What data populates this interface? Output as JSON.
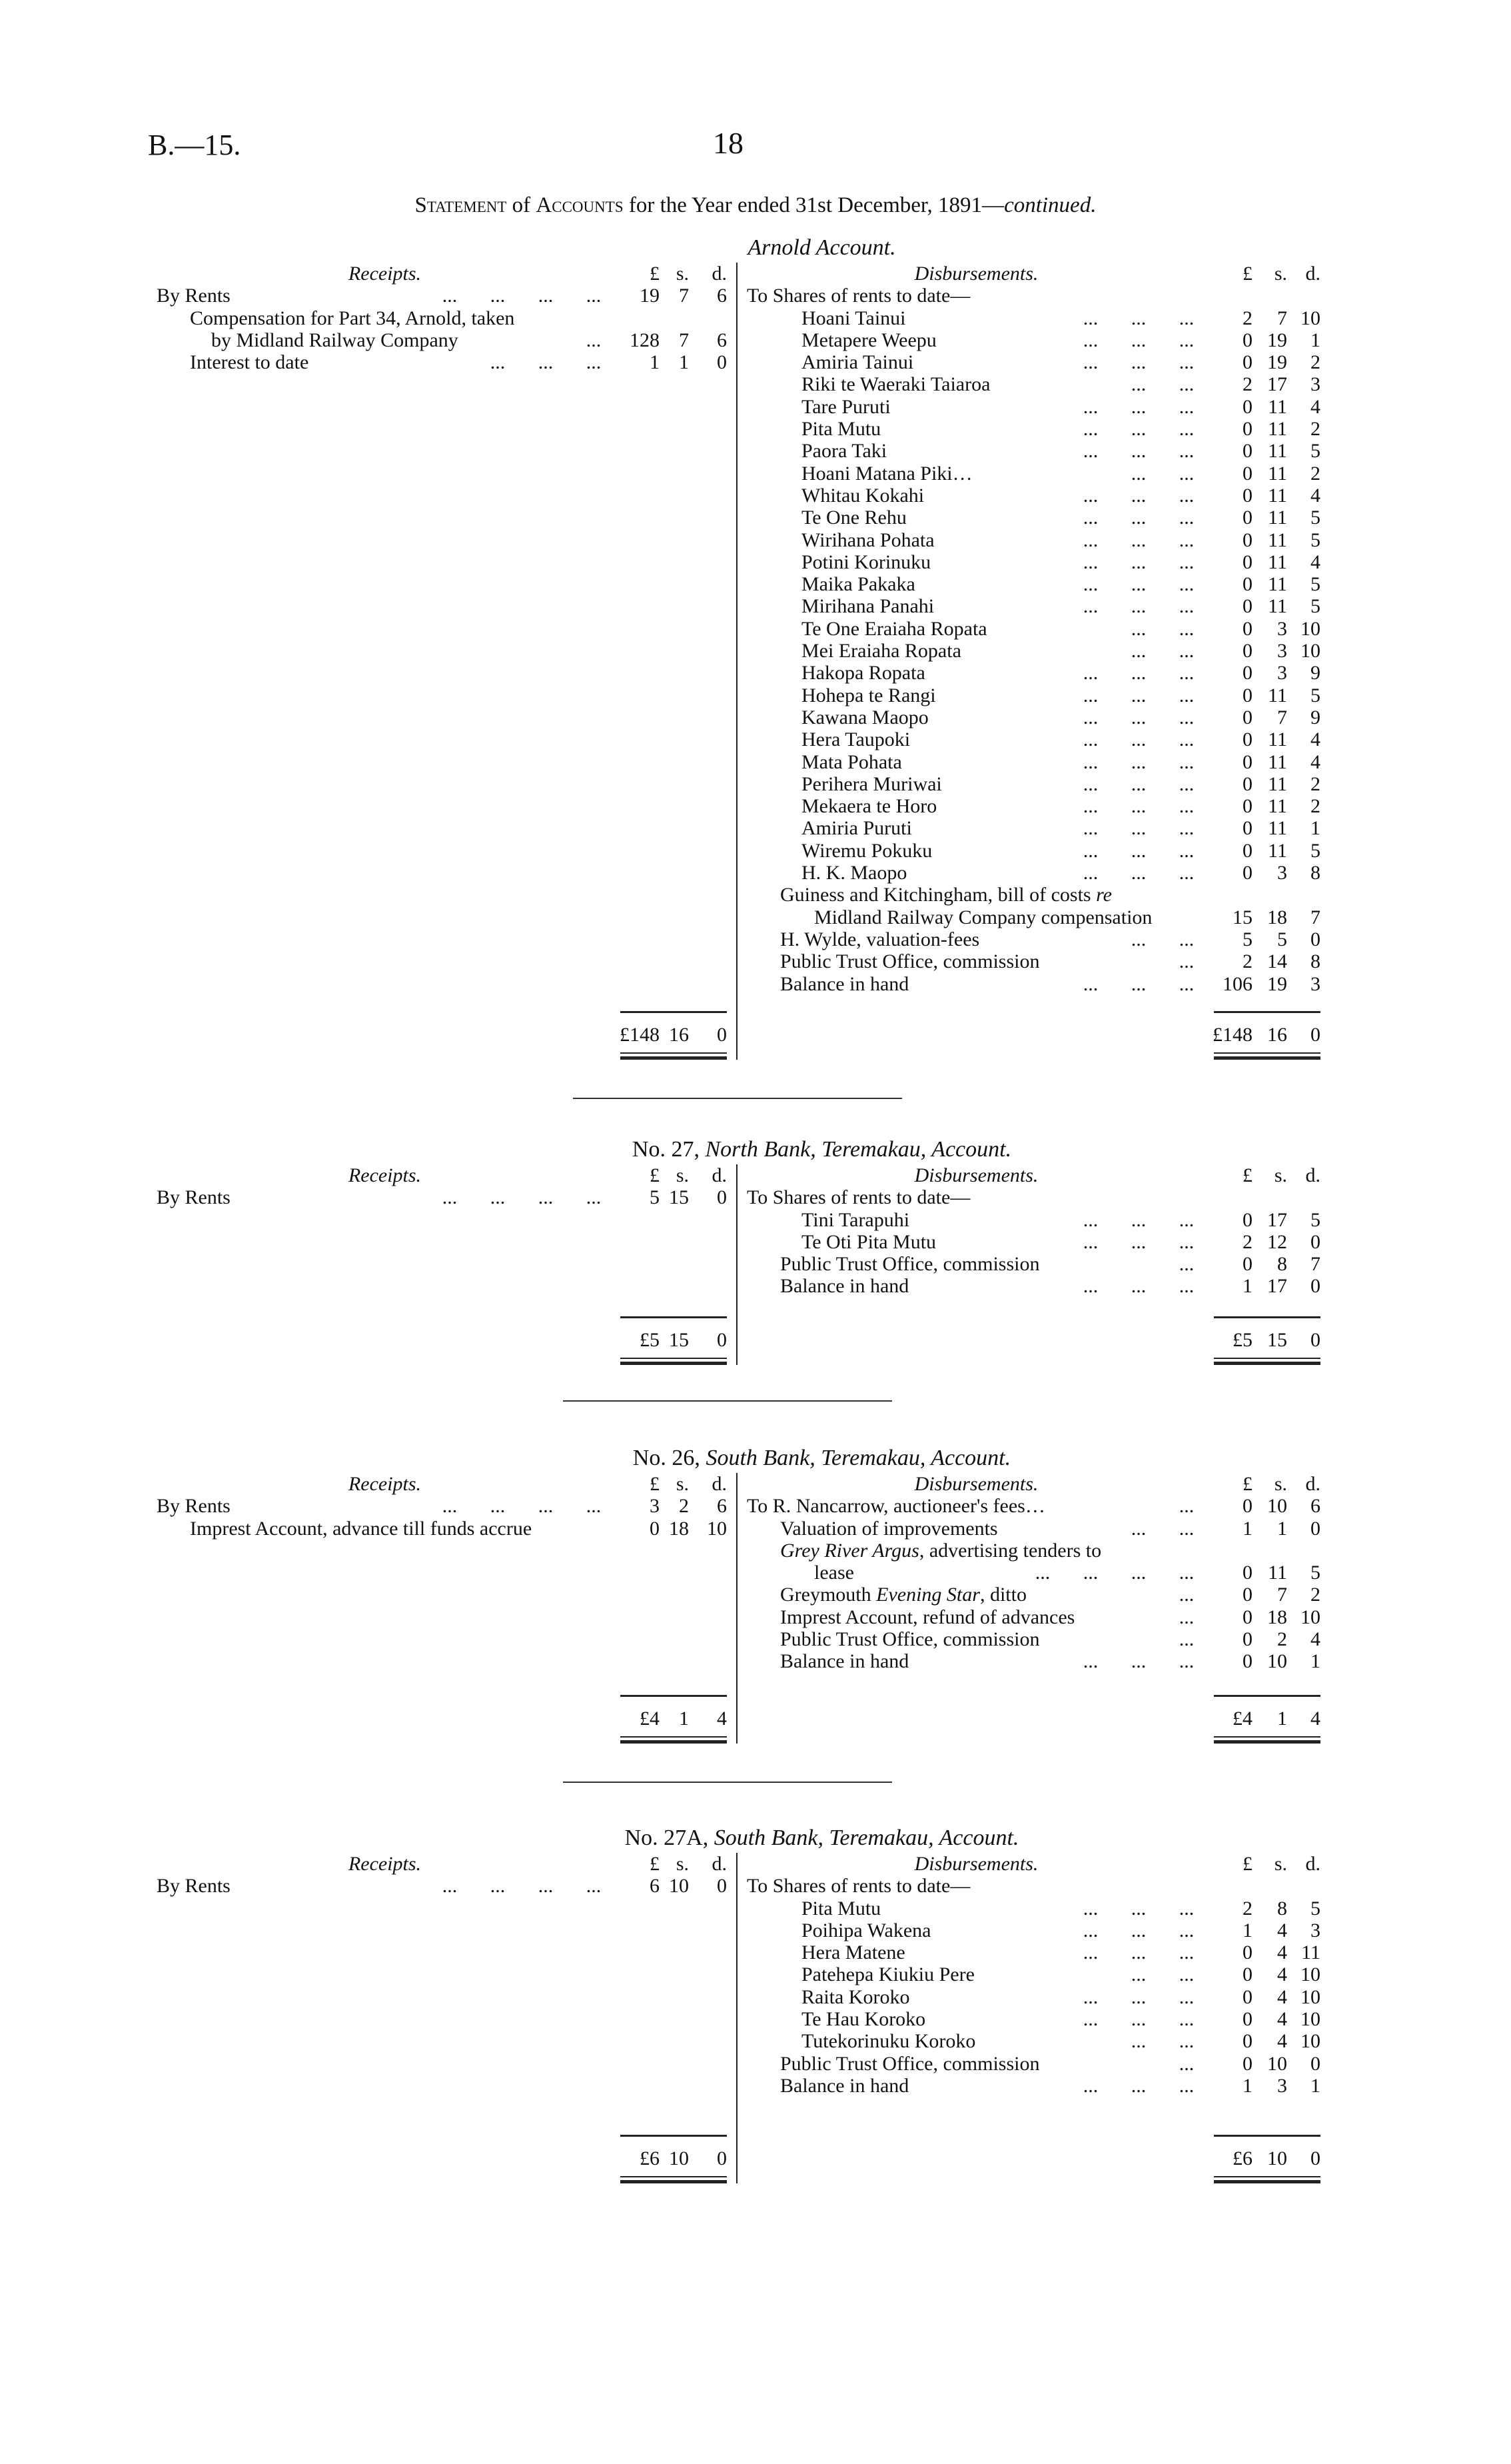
{
  "header": {
    "doc_code": "B.—15.",
    "page_number": "18"
  },
  "statement_title": {
    "part1": "Statement",
    "part2": " of ",
    "part3": "Accounts",
    "part4": " for the Year ended 31st December, 1891—",
    "continued": "continued."
  },
  "column_headers": {
    "receipts": "Receipts.",
    "disbursements": "Disbursements.",
    "pounds": "£",
    "shillings": "s.",
    "pence": "d."
  },
  "accounts": [
    {
      "number": "",
      "title": "Arnold Account.",
      "receipts": [
        {
          "label": [
            "By Rents"
          ],
          "indent": 0,
          "dots": 4,
          "amount": [
            "19",
            "7",
            "6"
          ]
        },
        {
          "label": [
            "Compensation for Part 34, Arnold, taken"
          ],
          "indent": 1,
          "dots": 0
        },
        {
          "label": [
            "by Midland Railway Company"
          ],
          "indent": 2,
          "dots": 1,
          "amount": [
            "128",
            "7",
            "6"
          ]
        },
        {
          "label": [
            "Interest to date"
          ],
          "indent": 1,
          "dots": 3,
          "amount": [
            "1",
            "1",
            "0"
          ]
        }
      ],
      "receipts_total": [
        "£148",
        "16",
        "0"
      ],
      "disbursements": [
        {
          "label": [
            "To Shares of rents to date—"
          ],
          "indent": 0,
          "dots": 0
        },
        {
          "label": [
            "Hoani Tainui"
          ],
          "indent": 2,
          "dots": 3,
          "amount": [
            "2",
            "7",
            "10"
          ]
        },
        {
          "label": [
            "Metapere Weepu"
          ],
          "indent": 2,
          "dots": 3,
          "amount": [
            "0",
            "19",
            "1"
          ]
        },
        {
          "label": [
            "Amiria Tainui"
          ],
          "indent": 2,
          "dots": 3,
          "amount": [
            "0",
            "19",
            "2"
          ]
        },
        {
          "label": [
            "Riki te Waeraki Taiaroa"
          ],
          "indent": 2,
          "dots": 2,
          "amount": [
            "2",
            "17",
            "3"
          ]
        },
        {
          "label": [
            "Tare Puruti"
          ],
          "indent": 2,
          "dots": 3,
          "amount": [
            "0",
            "11",
            "4"
          ]
        },
        {
          "label": [
            "Pita Mutu"
          ],
          "indent": 2,
          "dots": 3,
          "amount": [
            "0",
            "11",
            "2"
          ]
        },
        {
          "label": [
            "Paora Taki"
          ],
          "indent": 2,
          "dots": 3,
          "amount": [
            "0",
            "11",
            "5"
          ]
        },
        {
          "label": [
            "Hoani Matana Piki…"
          ],
          "indent": 2,
          "dots": 2,
          "amount": [
            "0",
            "11",
            "2"
          ]
        },
        {
          "label": [
            "Whitau Kokahi"
          ],
          "indent": 2,
          "dots": 3,
          "amount": [
            "0",
            "11",
            "4"
          ]
        },
        {
          "label": [
            "Te One Rehu"
          ],
          "indent": 2,
          "dots": 3,
          "amount": [
            "0",
            "11",
            "5"
          ]
        },
        {
          "label": [
            "Wirihana Pohata"
          ],
          "indent": 2,
          "dots": 3,
          "amount": [
            "0",
            "11",
            "5"
          ]
        },
        {
          "label": [
            "Potini Korinuku"
          ],
          "indent": 2,
          "dots": 3,
          "amount": [
            "0",
            "11",
            "4"
          ]
        },
        {
          "label": [
            "Maika Pakaka"
          ],
          "indent": 2,
          "dots": 3,
          "amount": [
            "0",
            "11",
            "5"
          ]
        },
        {
          "label": [
            "Mirihana Panahi"
          ],
          "indent": 2,
          "dots": 3,
          "amount": [
            "0",
            "11",
            "5"
          ]
        },
        {
          "label": [
            "Te One Eraiaha Ropata"
          ],
          "indent": 2,
          "dots": 2,
          "amount": [
            "0",
            "3",
            "10"
          ]
        },
        {
          "label": [
            "Mei Eraiaha Ropata"
          ],
          "indent": 2,
          "dots": 2,
          "amount": [
            "0",
            "3",
            "10"
          ]
        },
        {
          "label": [
            "Hakopa Ropata"
          ],
          "indent": 2,
          "dots": 3,
          "amount": [
            "0",
            "3",
            "9"
          ]
        },
        {
          "label": [
            "Hohepa te Rangi"
          ],
          "indent": 2,
          "dots": 3,
          "amount": [
            "0",
            "11",
            "5"
          ]
        },
        {
          "label": [
            "Kawana Maopo"
          ],
          "indent": 2,
          "dots": 3,
          "amount": [
            "0",
            "7",
            "9"
          ]
        },
        {
          "label": [
            "Hera Taupoki"
          ],
          "indent": 2,
          "dots": 3,
          "amount": [
            "0",
            "11",
            "4"
          ]
        },
        {
          "label": [
            "Mata Pohata"
          ],
          "indent": 2,
          "dots": 3,
          "amount": [
            "0",
            "11",
            "4"
          ]
        },
        {
          "label": [
            "Perihera Muriwai"
          ],
          "indent": 2,
          "dots": 3,
          "amount": [
            "0",
            "11",
            "2"
          ]
        },
        {
          "label": [
            "Mekaera te Horo"
          ],
          "indent": 2,
          "dots": 3,
          "amount": [
            "0",
            "11",
            "2"
          ]
        },
        {
          "label": [
            "Amiria Puruti"
          ],
          "indent": 2,
          "dots": 3,
          "amount": [
            "0",
            "11",
            "1"
          ]
        },
        {
          "label": [
            "Wiremu Pokuku"
          ],
          "indent": 2,
          "dots": 3,
          "amount": [
            "0",
            "11",
            "5"
          ]
        },
        {
          "label": [
            "H. K. Maopo"
          ],
          "indent": 2,
          "dots": 3,
          "amount": [
            "0",
            "3",
            "8"
          ]
        },
        {
          "label": [
            "Guiness and Kitchingham, bill of costs ",
            {
              "i": "re"
            }
          ],
          "indent": 1,
          "dots": 0
        },
        {
          "label": [
            "Midland Railway Company compensation"
          ],
          "indent": 3,
          "dots": 0,
          "amount": [
            "15",
            "18",
            "7"
          ]
        },
        {
          "label": [
            "H. Wylde, valuation-fees"
          ],
          "indent": 1,
          "dots": 2,
          "amount": [
            "5",
            "5",
            "0"
          ]
        },
        {
          "label": [
            "Public Trust Office, commission"
          ],
          "indent": 1,
          "dots": 1,
          "amount": [
            "2",
            "14",
            "8"
          ]
        },
        {
          "label": [
            "Balance in hand"
          ],
          "indent": 1,
          "dots": 3,
          "amount": [
            "106",
            "19",
            "3"
          ]
        }
      ],
      "disbursements_total": [
        "£148",
        "16",
        "0"
      ]
    },
    {
      "number": "No. 27,",
      "title": "North Bank, Teremakau, Account.",
      "receipts": [
        {
          "label": [
            "By Rents"
          ],
          "indent": 0,
          "dots": 4,
          "amount": [
            "5",
            "15",
            "0"
          ]
        }
      ],
      "receipts_total": [
        "£5",
        "15",
        "0"
      ],
      "disbursements": [
        {
          "label": [
            "To Shares of rents to date—"
          ],
          "indent": 0,
          "dots": 0
        },
        {
          "label": [
            "Tini Tarapuhi"
          ],
          "indent": 2,
          "dots": 3,
          "amount": [
            "0",
            "17",
            "5"
          ]
        },
        {
          "label": [
            "Te Oti Pita Mutu"
          ],
          "indent": 2,
          "dots": 3,
          "amount": [
            "2",
            "12",
            "0"
          ]
        },
        {
          "label": [
            "Public Trust Office, commission"
          ],
          "indent": 1,
          "dots": 1,
          "amount": [
            "0",
            "8",
            "7"
          ]
        },
        {
          "label": [
            "Balance in hand"
          ],
          "indent": 1,
          "dots": 3,
          "amount": [
            "1",
            "17",
            "0"
          ]
        }
      ],
      "disbursements_total": [
        "£5",
        "15",
        "0"
      ]
    },
    {
      "number": "No. 26,",
      "title": "South Bank, Teremakau, Account.",
      "receipts": [
        {
          "label": [
            "By Rents"
          ],
          "indent": 0,
          "dots": 4,
          "amount": [
            "3",
            "2",
            "6"
          ]
        },
        {
          "label": [
            "Imprest Account, advance till funds accrue"
          ],
          "indent": 1,
          "dots": 0,
          "amount": [
            "0",
            "18",
            "10"
          ]
        }
      ],
      "receipts_total": [
        "£4",
        "1",
        "4"
      ],
      "disbursements": [
        {
          "label": [
            "To R. Nancarrow, auctioneer's fees…"
          ],
          "indent": 0,
          "dots": 1,
          "amount": [
            "0",
            "10",
            "6"
          ]
        },
        {
          "label": [
            "Valuation of improvements"
          ],
          "indent": 1,
          "dots": 2,
          "amount": [
            "1",
            "1",
            "0"
          ]
        },
        {
          "label": [
            {
              "i": "Grey River Argus"
            },
            ", advertising tenders to"
          ],
          "indent": 1,
          "dots": 0
        },
        {
          "label": [
            "lease"
          ],
          "indent": 3,
          "dots": 4,
          "amount": [
            "0",
            "11",
            "5"
          ]
        },
        {
          "label": [
            "Greymouth ",
            {
              "i": "Evening Star"
            },
            ", ditto"
          ],
          "indent": 1,
          "dots": 1,
          "amount": [
            "0",
            "7",
            "2"
          ]
        },
        {
          "label": [
            "Imprest Account, refund of advances"
          ],
          "indent": 1,
          "dots": 1,
          "amount": [
            "0",
            "18",
            "10"
          ]
        },
        {
          "label": [
            "Public Trust Office, commission"
          ],
          "indent": 1,
          "dots": 1,
          "amount": [
            "0",
            "2",
            "4"
          ]
        },
        {
          "label": [
            "Balance in hand"
          ],
          "indent": 1,
          "dots": 3,
          "amount": [
            "0",
            "10",
            "1"
          ]
        }
      ],
      "disbursements_total": [
        "£4",
        "1",
        "4"
      ]
    },
    {
      "number": "No. 27A,",
      "title": "South Bank, Teremakau, Account.",
      "receipts": [
        {
          "label": [
            "By Rents"
          ],
          "indent": 0,
          "dots": 4,
          "amount": [
            "6",
            "10",
            "0"
          ]
        }
      ],
      "receipts_total": [
        "£6",
        "10",
        "0"
      ],
      "disbursements": [
        {
          "label": [
            "To Shares of rents to date—"
          ],
          "indent": 0,
          "dots": 0
        },
        {
          "label": [
            "Pita Mutu"
          ],
          "indent": 2,
          "dots": 3,
          "amount": [
            "2",
            "8",
            "5"
          ]
        },
        {
          "label": [
            "Poihipa Wakena"
          ],
          "indent": 2,
          "dots": 3,
          "amount": [
            "1",
            "4",
            "3"
          ]
        },
        {
          "label": [
            "Hera Matene"
          ],
          "indent": 2,
          "dots": 3,
          "amount": [
            "0",
            "4",
            "11"
          ]
        },
        {
          "label": [
            "Patehepa Kiukiu Pere"
          ],
          "indent": 2,
          "dots": 2,
          "amount": [
            "0",
            "4",
            "10"
          ]
        },
        {
          "label": [
            "Raita Koroko"
          ],
          "indent": 2,
          "dots": 3,
          "amount": [
            "0",
            "4",
            "10"
          ]
        },
        {
          "label": [
            "Te Hau Koroko"
          ],
          "indent": 2,
          "dots": 3,
          "amount": [
            "0",
            "4",
            "10"
          ]
        },
        {
          "label": [
            "Tutekorinuku Koroko"
          ],
          "indent": 2,
          "dots": 2,
          "amount": [
            "0",
            "4",
            "10"
          ]
        },
        {
          "label": [
            "Public Trust Office, commission"
          ],
          "indent": 1,
          "dots": 1,
          "amount": [
            "0",
            "10",
            "0"
          ]
        },
        {
          "label": [
            "Balance in hand"
          ],
          "indent": 1,
          "dots": 3,
          "amount": [
            "1",
            "3",
            "1"
          ]
        }
      ],
      "disbursements_total": [
        "£6",
        "10",
        "0"
      ]
    }
  ]
}
